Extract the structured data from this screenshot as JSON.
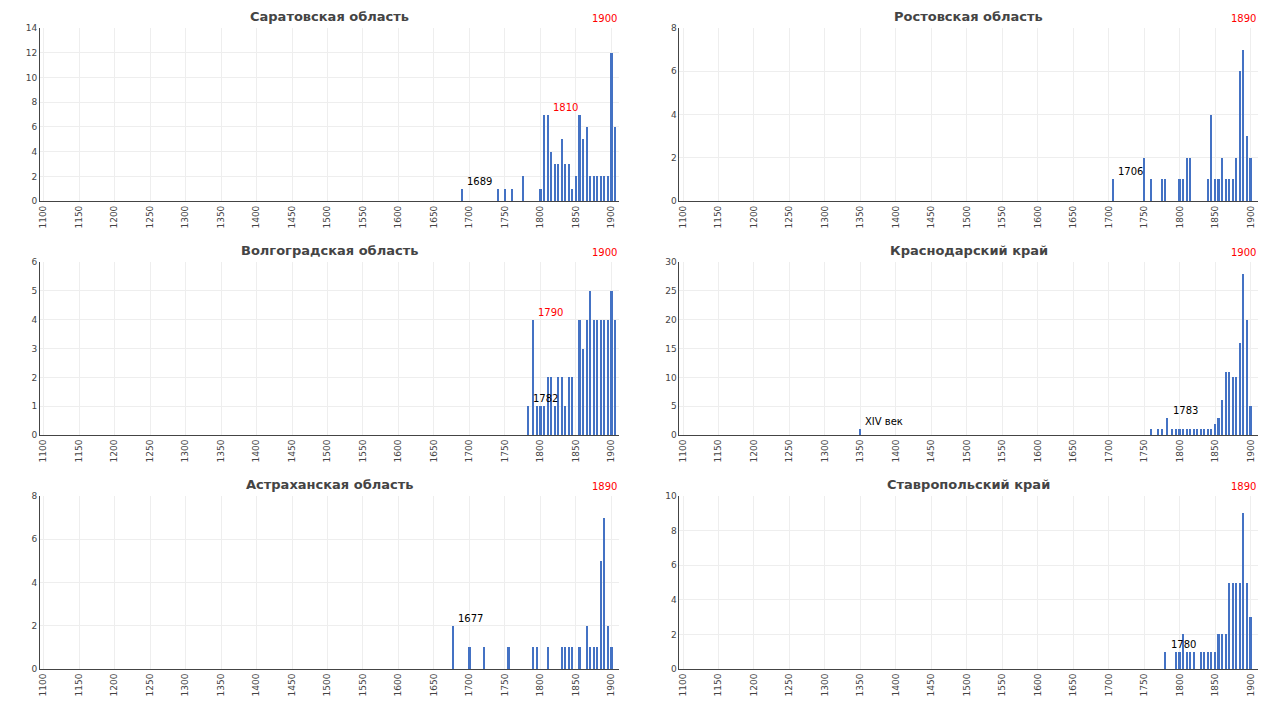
{
  "chart_data": [
    {
      "type": "bar",
      "title": "Саратовская область",
      "x": [
        1689,
        1740,
        1750,
        1760,
        1775,
        1800,
        1805,
        1810,
        1815,
        1820,
        1825,
        1830,
        1835,
        1840,
        1845,
        1850,
        1855,
        1860,
        1865,
        1870,
        1875,
        1880,
        1885,
        1890,
        1895,
        1900,
        1905
      ],
      "values": [
        1,
        1,
        1,
        1,
        2,
        1,
        7,
        7,
        4,
        3,
        3,
        5,
        3,
        3,
        1,
        2,
        7,
        5,
        6,
        2,
        2,
        2,
        2,
        2,
        2,
        12,
        6
      ],
      "color": "#4472C4",
      "xlim": [
        1095,
        1910
      ],
      "xticks": [
        1100,
        1150,
        1200,
        1250,
        1300,
        1350,
        1400,
        1450,
        1500,
        1550,
        1600,
        1650,
        1700,
        1750,
        1800,
        1850,
        1900
      ],
      "ylim": [
        0,
        14
      ],
      "yticks": [
        0,
        2,
        4,
        6,
        8,
        10,
        12,
        14
      ],
      "grid": true,
      "annotations": [
        {
          "text": "1689",
          "x": 1689,
          "color": "black"
        },
        {
          "text": "1810",
          "x": 1810,
          "color": "red"
        },
        {
          "text": "1900",
          "color": "red"
        }
      ]
    },
    {
      "type": "bar",
      "title": "Ростовская область",
      "x": [
        1706,
        1750,
        1760,
        1775,
        1780,
        1800,
        1805,
        1810,
        1815,
        1840,
        1845,
        1850,
        1855,
        1860,
        1865,
        1870,
        1875,
        1880,
        1885,
        1890,
        1895,
        1900
      ],
      "values": [
        1,
        2,
        1,
        1,
        1,
        1,
        1,
        2,
        2,
        1,
        4,
        1,
        1,
        2,
        1,
        1,
        1,
        2,
        6,
        7,
        3,
        2
      ],
      "color": "#4472C4",
      "xlim": [
        1095,
        1910
      ],
      "xticks": [
        1100,
        1150,
        1200,
        1250,
        1300,
        1350,
        1400,
        1450,
        1500,
        1550,
        1600,
        1650,
        1700,
        1750,
        1800,
        1850,
        1900
      ],
      "ylim": [
        0,
        8
      ],
      "yticks": [
        0,
        2,
        4,
        6,
        8
      ],
      "grid": true,
      "annotations": [
        {
          "text": "1706",
          "x": 1706,
          "color": "black"
        },
        {
          "text": "1890",
          "color": "red"
        }
      ]
    },
    {
      "type": "bar",
      "title": "Волгоградская область",
      "x": [
        1782,
        1790,
        1795,
        1800,
        1805,
        1810,
        1815,
        1820,
        1825,
        1830,
        1835,
        1840,
        1845,
        1855,
        1860,
        1865,
        1870,
        1875,
        1880,
        1885,
        1890,
        1895,
        1900,
        1905
      ],
      "values": [
        1,
        4,
        1,
        1,
        1,
        2,
        2,
        1,
        2,
        2,
        1,
        2,
        2,
        4,
        3,
        4,
        5,
        4,
        4,
        4,
        4,
        4,
        5,
        4
      ],
      "color": "#4472C4",
      "xlim": [
        1095,
        1910
      ],
      "xticks": [
        1100,
        1150,
        1200,
        1250,
        1300,
        1350,
        1400,
        1450,
        1500,
        1550,
        1600,
        1650,
        1700,
        1750,
        1800,
        1850,
        1900
      ],
      "ylim": [
        0,
        6
      ],
      "yticks": [
        0,
        1,
        2,
        3,
        4,
        5,
        6
      ],
      "grid": true,
      "annotations": [
        {
          "text": "1782",
          "x": 1782,
          "color": "black"
        },
        {
          "text": "1790",
          "x": 1790,
          "color": "red"
        },
        {
          "text": "1900",
          "color": "red"
        }
      ]
    },
    {
      "type": "bar",
      "title": "Краснодарский край",
      "x": [
        1350,
        1760,
        1770,
        1775,
        1783,
        1790,
        1795,
        1800,
        1805,
        1810,
        1815,
        1820,
        1825,
        1830,
        1835,
        1840,
        1845,
        1850,
        1855,
        1860,
        1865,
        1870,
        1875,
        1880,
        1885,
        1890,
        1895,
        1900
      ],
      "values": [
        1,
        1,
        1,
        1,
        3,
        1,
        1,
        1,
        1,
        1,
        1,
        1,
        1,
        1,
        1,
        1,
        1,
        2,
        3,
        6,
        11,
        11,
        10,
        10,
        16,
        28,
        20,
        5
      ],
      "color": "#4472C4",
      "xlim": [
        1095,
        1910
      ],
      "xticks": [
        1100,
        1150,
        1200,
        1250,
        1300,
        1350,
        1400,
        1450,
        1500,
        1550,
        1600,
        1650,
        1700,
        1750,
        1800,
        1850,
        1900
      ],
      "ylim": [
        0,
        30
      ],
      "yticks": [
        0,
        5,
        10,
        15,
        20,
        25,
        30
      ],
      "grid": true,
      "annotations": [
        {
          "text": "XIV век",
          "x": 1350,
          "color": "black"
        },
        {
          "text": "1783",
          "x": 1783,
          "color": "black"
        },
        {
          "text": "1900",
          "color": "red"
        }
      ]
    },
    {
      "type": "bar",
      "title": "Астраханская область",
      "x": [
        1677,
        1700,
        1720,
        1755,
        1790,
        1795,
        1810,
        1830,
        1835,
        1840,
        1845,
        1855,
        1865,
        1870,
        1875,
        1880,
        1885,
        1890,
        1895,
        1900
      ],
      "values": [
        2,
        1,
        1,
        1,
        1,
        1,
        1,
        1,
        1,
        1,
        1,
        1,
        2,
        1,
        1,
        1,
        5,
        7,
        2,
        1
      ],
      "color": "#4472C4",
      "xlim": [
        1095,
        1910
      ],
      "xticks": [
        1100,
        1150,
        1200,
        1250,
        1300,
        1350,
        1400,
        1450,
        1500,
        1550,
        1600,
        1650,
        1700,
        1750,
        1800,
        1850,
        1900
      ],
      "ylim": [
        0,
        8
      ],
      "yticks": [
        0,
        2,
        4,
        6,
        8
      ],
      "grid": true,
      "annotations": [
        {
          "text": "1677",
          "x": 1677,
          "color": "black"
        },
        {
          "text": "1890",
          "color": "red"
        }
      ]
    },
    {
      "type": "bar",
      "title": "Ставропольский край",
      "x": [
        1780,
        1795,
        1800,
        1805,
        1810,
        1815,
        1820,
        1830,
        1835,
        1840,
        1845,
        1850,
        1855,
        1860,
        1865,
        1870,
        1875,
        1880,
        1885,
        1890,
        1895,
        1900
      ],
      "values": [
        1,
        1,
        1,
        2,
        1,
        1,
        1,
        1,
        1,
        1,
        1,
        1,
        2,
        2,
        2,
        5,
        5,
        5,
        5,
        9,
        5,
        3
      ],
      "color": "#4472C4",
      "xlim": [
        1095,
        1910
      ],
      "xticks": [
        1100,
        1150,
        1200,
        1250,
        1300,
        1350,
        1400,
        1450,
        1500,
        1550,
        1600,
        1650,
        1700,
        1750,
        1800,
        1850,
        1900
      ],
      "ylim": [
        0,
        10
      ],
      "yticks": [
        0,
        2,
        4,
        6,
        8,
        10
      ],
      "grid": true,
      "annotations": [
        {
          "text": "1780",
          "x": 1780,
          "color": "black"
        },
        {
          "text": "1890",
          "color": "red"
        }
      ]
    }
  ]
}
